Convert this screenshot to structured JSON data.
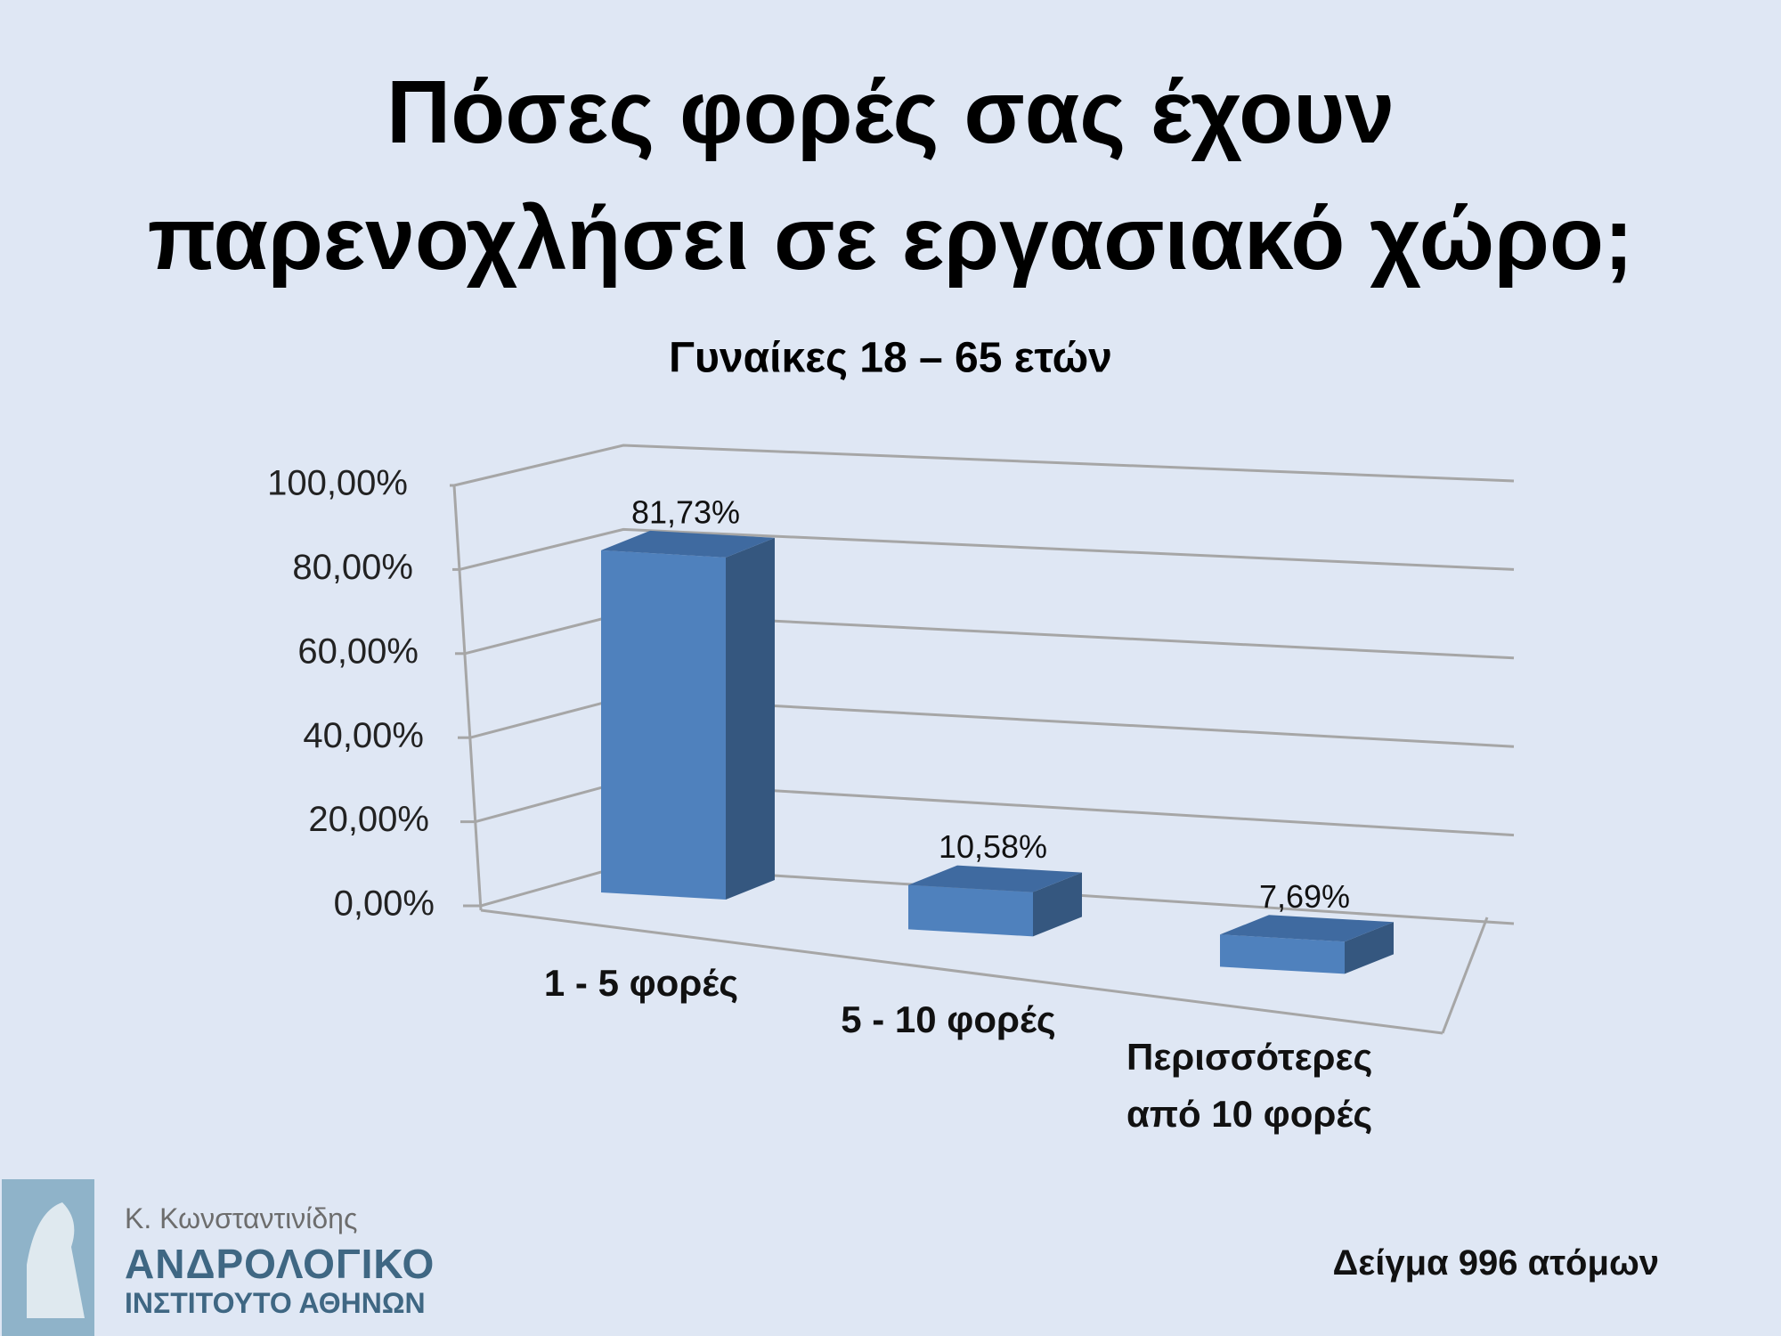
{
  "slide_title": "Πόσες φορές σας έχουν παρενοχλήσει σε εργασιακό χώρο;",
  "chart_data": {
    "type": "bar",
    "title": "Γυναίκες 18 – 65 ετών",
    "categories": [
      "1 - 5 φορές",
      "5 - 10 φορές",
      "Περισσότερες από 10 φορές"
    ],
    "values": [
      81.73,
      10.58,
      7.69
    ],
    "value_labels": [
      "81,73%",
      "10,58%",
      "7,69%"
    ],
    "color": "#4f81bd",
    "ylim": [
      0,
      100
    ],
    "yticks": [
      {
        "value": 0,
        "label": "0,00%"
      },
      {
        "value": 20,
        "label": "20,00%"
      },
      {
        "value": 40,
        "label": "40,00%"
      },
      {
        "value": 60,
        "label": "60,00%"
      },
      {
        "value": 80,
        "label": "80,00%"
      },
      {
        "value": 100,
        "label": "100,00%"
      }
    ],
    "grid": true
  },
  "footer": {
    "sample": "Δείγμα 996 ατόμων",
    "author": "Κ. Κωνσταντινίδης",
    "institute_line1": "ΑΝΔΡΟΛΟΓΙΚΟ",
    "institute_line2": "ΙΝΣΤΙΤΟΥΤΟ ΑΘΗΝΩΝ"
  }
}
